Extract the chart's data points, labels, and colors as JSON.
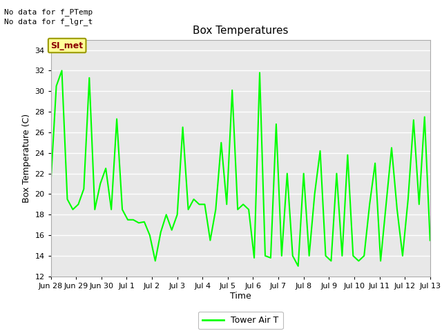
{
  "title": "Box Temperatures",
  "xlabel": "Time",
  "ylabel": "Box Temperature (C)",
  "ylim": [
    12,
    35
  ],
  "yticks": [
    12,
    14,
    16,
    18,
    20,
    22,
    24,
    26,
    28,
    30,
    32,
    34
  ],
  "line_color": "#00FF00",
  "line_width": 1.5,
  "bg_color": "#E8E8E8",
  "fig_bg_color": "#FFFFFF",
  "annotation_text1": "No data for f_PTemp",
  "annotation_text2": "No data for f_lgr_t",
  "legend_label": "Tower Air T",
  "tab_label": "SI_met",
  "tab_text_color": "#8B0000",
  "tab_bg_color": "#FFFF99",
  "tab_edge_color": "#999900",
  "x_tick_labels": [
    "Jun 28",
    "Jun 29",
    "Jun 30",
    "Jul 1",
    "Jul 2",
    "Jul 3",
    "Jul 4",
    "Jul 5",
    "Jul 6",
    "Jul 7",
    "Jul 8",
    "Jul 9",
    "Jul 10",
    "Jul 11",
    "Jul 12",
    "Jul 13"
  ],
  "y_data": [
    21.2,
    30.5,
    32.0,
    19.5,
    18.5,
    19.0,
    20.5,
    31.3,
    18.5,
    21.0,
    22.5,
    18.5,
    27.3,
    18.5,
    17.5,
    17.5,
    17.2,
    17.3,
    16.0,
    13.5,
    16.3,
    18.0,
    16.5,
    18.0,
    26.5,
    18.5,
    19.5,
    19.0,
    19.0,
    15.5,
    18.5,
    25.0,
    19.0,
    30.1,
    18.5,
    19.0,
    18.5,
    13.8,
    31.8,
    14.0,
    13.8,
    26.8,
    14.0,
    22.0,
    14.0,
    13.0,
    22.0,
    14.0,
    20.0,
    24.2,
    14.0,
    13.5,
    22.0,
    14.0,
    23.8,
    14.0,
    13.5,
    14.0,
    19.0,
    23.0,
    13.5,
    19.0,
    24.5,
    18.5,
    14.0,
    19.5,
    27.2,
    19.0,
    27.5,
    15.5
  ]
}
